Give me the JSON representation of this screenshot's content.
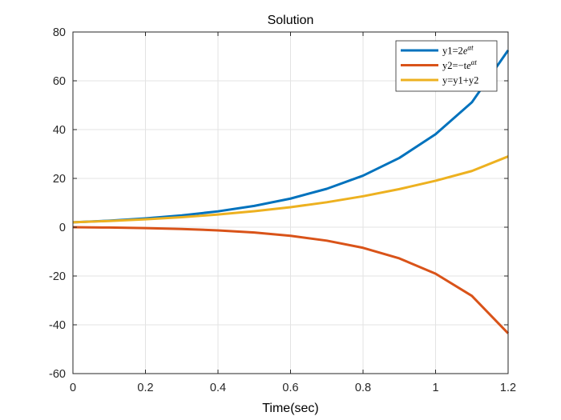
{
  "chart_data": {
    "type": "line",
    "title": "Solution",
    "xlabel": "Time(sec)",
    "ylabel": "",
    "xlim": [
      0,
      1.2
    ],
    "ylim": [
      -60,
      80
    ],
    "xticks": [
      0,
      0.2,
      0.4,
      0.6,
      0.8,
      1,
      1.2
    ],
    "xtick_labels": [
      "0",
      "0.2",
      "0.4",
      "0.6",
      "0.8",
      "1",
      "1.2"
    ],
    "yticks": [
      -60,
      -40,
      -20,
      0,
      20,
      40,
      60,
      80
    ],
    "ytick_labels": [
      "-60",
      "-40",
      "-20",
      "0",
      "20",
      "40",
      "60",
      "80"
    ],
    "grid": true,
    "legend_position": "top-right",
    "x": [
      0,
      0.1,
      0.2,
      0.3,
      0.4,
      0.5,
      0.6,
      0.7,
      0.8,
      0.9,
      1.0,
      1.1,
      1.2
    ],
    "series": [
      {
        "name": "y1=2e^{αt}",
        "legend_main": "y1=2",
        "legend_base": "e",
        "legend_sup": "αt",
        "color": "#0072BD",
        "values": [
          2,
          2.68,
          3.6,
          4.84,
          6.5,
          8.73,
          11.72,
          15.74,
          21.13,
          28.38,
          38.1,
          51.17,
          72.5
        ]
      },
      {
        "name": "y2=−te^{αt}",
        "legend_main": "y2=−t",
        "legend_base": "e",
        "legend_sup": "αt",
        "color": "#D95319",
        "values": [
          0,
          -0.13,
          -0.36,
          -0.73,
          -1.3,
          -2.18,
          -3.52,
          -5.51,
          -8.45,
          -12.77,
          -19.05,
          -28.14,
          -43.5
        ]
      },
      {
        "name": "y=y1+y2",
        "legend_main": "y=y1+y2",
        "legend_base": "",
        "legend_sup": "",
        "color": "#EDB120",
        "values": [
          2,
          2.55,
          3.24,
          4.11,
          5.2,
          6.55,
          8.2,
          10.23,
          12.68,
          15.61,
          19.05,
          23.03,
          29.0
        ]
      }
    ]
  }
}
